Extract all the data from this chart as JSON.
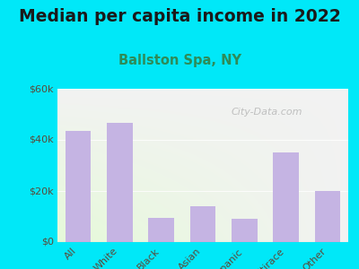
{
  "title": "Median per capita income in 2022",
  "subtitle": "Ballston Spa, NY",
  "categories": [
    "All",
    "White",
    "Black",
    "Asian",
    "Hispanic",
    "Multirace",
    "Other"
  ],
  "values": [
    43500,
    46500,
    9500,
    14000,
    9000,
    35000,
    20000
  ],
  "bar_color": "#c5b4e3",
  "background_outer": "#00e8f8",
  "title_color": "#1a1a1a",
  "subtitle_color": "#2e8b57",
  "tick_label_color": "#5a4a3a",
  "watermark": "City-Data.com",
  "ylim": [
    0,
    60000
  ],
  "yticks": [
    0,
    20000,
    40000,
    60000
  ],
  "ytick_labels": [
    "$0",
    "$20k",
    "$40k",
    "$60k"
  ],
  "title_fontsize": 13.5,
  "subtitle_fontsize": 10.5
}
